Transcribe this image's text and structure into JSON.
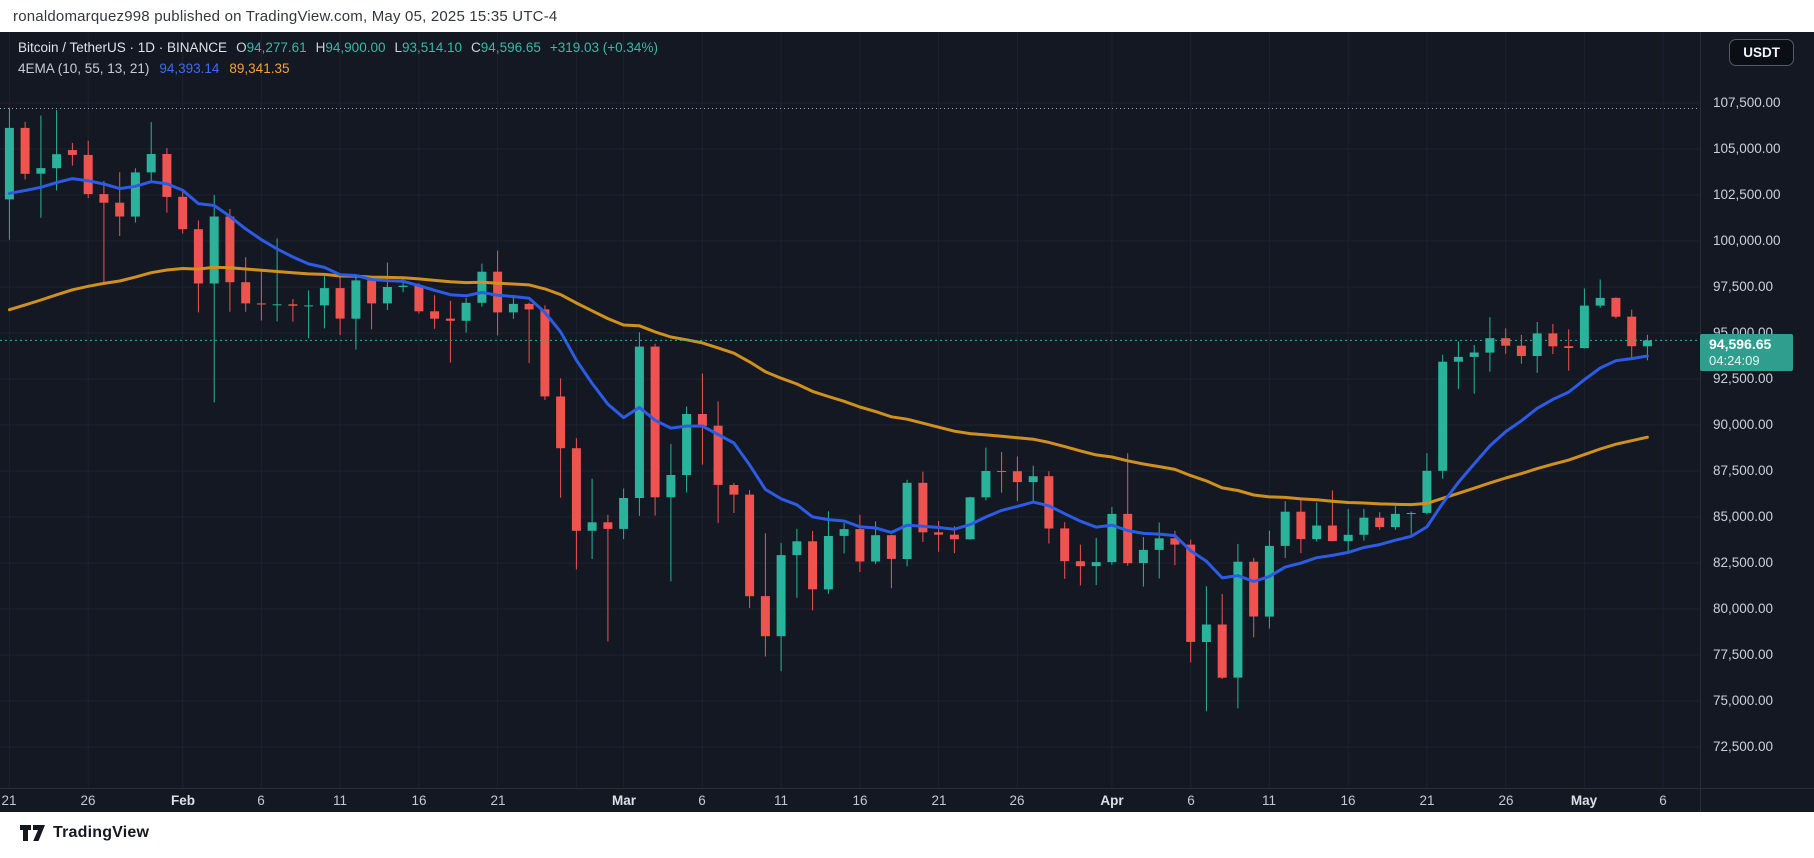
{
  "header": {
    "publish_text": "ronaldomarquez998 published on TradingView.com, May 05, 2025 15:35 UTC-4"
  },
  "legend": {
    "symbol_title": "Bitcoin / TetherUS · 1D · BINANCE",
    "ohlc": [
      {
        "label": "O",
        "value": "94,277.61"
      },
      {
        "label": "H",
        "value": "94,900.00"
      },
      {
        "label": "L",
        "value": "93,514.10"
      },
      {
        "label": "C",
        "value": "94,596.65"
      }
    ],
    "change_text": "+319.03 (+0.34%)",
    "indicator_label": "4EMA (10, 55, 13, 21)",
    "ema_fast_value": "94,393.14",
    "ema_slow_value": "89,341.35"
  },
  "toolbar": {
    "currency_label": "USDT"
  },
  "price_scale": {
    "last_price_label": "94,596.65",
    "countdown": "04:24:09"
  },
  "footer": {
    "logo_text": "TradingView"
  },
  "colors": {
    "background": "#141823",
    "grid": "#1d2230",
    "axis_border": "#2a2e39",
    "axis_text": "#cdd0d9",
    "candle_up": "#2ab29a",
    "candle_down": "#ef5350",
    "ema_fast": "#2c5ce5",
    "ema_slow": "#d0901e",
    "last_price_line": "#2eaf9d",
    "ath_line": "#b9bec9",
    "badge_bg": "#2f9e8f",
    "legend_value": "#3cb8a5"
  },
  "chart_data": {
    "type": "candlestick",
    "title": "Bitcoin / TetherUS",
    "interval": "1D",
    "exchange": "BINANCE",
    "grid": true,
    "price_axis": {
      "min": 72500,
      "max": 107500,
      "step": 2500,
      "visible_range": [
        70300,
        109100
      ]
    },
    "time_ticks": [
      {
        "label": "21",
        "day": 0
      },
      {
        "label": "26",
        "day": 5
      },
      {
        "label": "Feb",
        "day": 11,
        "bold": true
      },
      {
        "label": "6",
        "day": 16
      },
      {
        "label": "11",
        "day": 21
      },
      {
        "label": "16",
        "day": 26
      },
      {
        "label": "21",
        "day": 31
      },
      {
        "label": "",
        "day": 36
      },
      {
        "label": "Mar",
        "day": 39,
        "bold": true
      },
      {
        "label": "6",
        "day": 44
      },
      {
        "label": "11",
        "day": 49
      },
      {
        "label": "16",
        "day": 54
      },
      {
        "label": "21",
        "day": 59
      },
      {
        "label": "26",
        "day": 64
      },
      {
        "label": "Apr",
        "day": 70,
        "bold": true
      },
      {
        "label": "6",
        "day": 75
      },
      {
        "label": "11",
        "day": 80
      },
      {
        "label": "16",
        "day": 85
      },
      {
        "label": "21",
        "day": 90
      },
      {
        "label": "26",
        "day": 95
      },
      {
        "label": "May",
        "day": 100,
        "bold": true
      },
      {
        "label": "6",
        "day": 105
      }
    ],
    "first_candle_axis_label": "21",
    "candles_ohlc": [
      [
        102260,
        107240,
        100070,
        106146
      ],
      [
        106146,
        106480,
        103340,
        103653
      ],
      [
        103653,
        106820,
        101260,
        103960
      ],
      [
        103960,
        107120,
        102750,
        104720
      ],
      [
        104940,
        105330,
        104100,
        104680
      ],
      [
        104680,
        105450,
        102330,
        102550
      ],
      [
        102550,
        103260,
        97750,
        102080
      ],
      [
        102080,
        103740,
        100270,
        101330
      ],
      [
        101330,
        103950,
        101000,
        103730
      ],
      [
        103730,
        106460,
        103290,
        104730
      ],
      [
        104730,
        105050,
        101540,
        102400
      ],
      [
        102400,
        102790,
        100410,
        100640
      ],
      [
        100640,
        101120,
        96120,
        97690
      ],
      [
        97690,
        102500,
        91230,
        101330
      ],
      [
        101330,
        101740,
        96150,
        97760
      ],
      [
        97760,
        99120,
        96150,
        96610
      ],
      [
        96610,
        98400,
        95680,
        96550
      ],
      [
        96550,
        100140,
        95630,
        96560
      ],
      [
        96560,
        96850,
        95620,
        96480
      ],
      [
        96480,
        97320,
        94710,
        96500
      ],
      [
        96500,
        98100,
        95250,
        97440
      ],
      [
        97440,
        98230,
        94880,
        95780
      ],
      [
        95780,
        98120,
        94090,
        97860
      ],
      [
        97860,
        98080,
        95200,
        96610
      ],
      [
        96610,
        98830,
        96250,
        97500
      ],
      [
        97500,
        97970,
        97220,
        97570
      ],
      [
        97570,
        97700,
        96060,
        96180
      ],
      [
        96180,
        97050,
        95230,
        95780
      ],
      [
        95780,
        96750,
        93390,
        95660
      ],
      [
        95660,
        96900,
        95020,
        96640
      ],
      [
        96640,
        98770,
        96430,
        98330
      ],
      [
        98330,
        99480,
        94870,
        96120
      ],
      [
        96120,
        96940,
        95770,
        96580
      ],
      [
        96580,
        96650,
        93370,
        96280
      ],
      [
        96280,
        96500,
        91360,
        91550
      ],
      [
        91550,
        92540,
        86050,
        88740
      ],
      [
        88740,
        89290,
        82150,
        84250
      ],
      [
        84250,
        87080,
        82720,
        84710
      ],
      [
        84710,
        85120,
        78240,
        84350
      ],
      [
        84350,
        86550,
        83800,
        86030
      ],
      [
        86030,
        95040,
        85060,
        94260
      ],
      [
        94260,
        94420,
        85080,
        86070
      ],
      [
        86070,
        88970,
        81500,
        87280
      ],
      [
        87280,
        91000,
        86330,
        90600
      ],
      [
        90600,
        92800,
        87850,
        89960
      ],
      [
        89960,
        91280,
        84670,
        86740
      ],
      [
        86740,
        86850,
        85220,
        86220
      ],
      [
        86220,
        86470,
        80050,
        80700
      ],
      [
        80700,
        84120,
        77420,
        78520
      ],
      [
        78520,
        83580,
        76620,
        82930
      ],
      [
        82930,
        84360,
        80610,
        83680
      ],
      [
        83680,
        84240,
        79930,
        81070
      ],
      [
        81070,
        85310,
        80820,
        83970
      ],
      [
        83970,
        84670,
        83020,
        84340
      ],
      [
        84340,
        85120,
        82010,
        82580
      ],
      [
        82580,
        84760,
        82440,
        84010
      ],
      [
        84010,
        84030,
        81130,
        82720
      ],
      [
        82720,
        87020,
        82320,
        86860
      ],
      [
        86860,
        87460,
        83640,
        84170
      ],
      [
        84170,
        84790,
        83110,
        84040
      ],
      [
        84040,
        84500,
        83030,
        83790
      ],
      [
        83790,
        86100,
        83760,
        86070
      ],
      [
        86070,
        88770,
        85910,
        87500
      ],
      [
        87500,
        88540,
        86320,
        87490
      ],
      [
        87490,
        88290,
        85860,
        86900
      ],
      [
        86900,
        87790,
        85830,
        87220
      ],
      [
        87220,
        87490,
        83560,
        84380
      ],
      [
        84380,
        84720,
        81640,
        82600
      ],
      [
        82600,
        83500,
        81280,
        82330
      ],
      [
        82330,
        83870,
        81300,
        82550
      ],
      [
        82550,
        85550,
        82410,
        85170
      ],
      [
        85170,
        88470,
        82350,
        82490
      ],
      [
        82490,
        83910,
        81220,
        83210
      ],
      [
        83210,
        84700,
        81660,
        83840
      ],
      [
        83840,
        84250,
        82380,
        83500
      ],
      [
        83500,
        83770,
        77100,
        78210
      ],
      [
        78210,
        81240,
        74440,
        79160
      ],
      [
        79160,
        80820,
        76200,
        76270
      ],
      [
        76270,
        83540,
        74600,
        82570
      ],
      [
        82570,
        82780,
        78460,
        79590
      ],
      [
        79590,
        84250,
        78940,
        83430
      ],
      [
        83430,
        85860,
        82770,
        85290
      ],
      [
        85290,
        86010,
        83030,
        83800
      ],
      [
        83800,
        85790,
        83670,
        84540
      ],
      [
        84540,
        86450,
        83680,
        83690
      ],
      [
        83690,
        85440,
        83100,
        84030
      ],
      [
        84030,
        85440,
        83720,
        84960
      ],
      [
        84960,
        85260,
        84300,
        84450
      ],
      [
        84450,
        85600,
        84300,
        85170
      ],
      [
        85170,
        85300,
        83970,
        85220
      ],
      [
        85220,
        88470,
        85140,
        87510
      ],
      [
        87510,
        93820,
        87080,
        93440
      ],
      [
        93440,
        94530,
        91960,
        93700
      ],
      [
        93700,
        94350,
        91700,
        93940
      ],
      [
        93940,
        95860,
        92900,
        94720
      ],
      [
        94720,
        95250,
        93870,
        94310
      ],
      [
        94310,
        94900,
        93330,
        93750
      ],
      [
        93750,
        95600,
        92830,
        94980
      ],
      [
        94980,
        95490,
        93860,
        94280
      ],
      [
        94280,
        95200,
        92950,
        94180
      ],
      [
        94180,
        97420,
        94150,
        96490
      ],
      [
        96490,
        97910,
        96370,
        96910
      ],
      [
        96910,
        96940,
        95790,
        95890
      ],
      [
        95890,
        96270,
        93570,
        94280
      ],
      [
        94277.61,
        94900.0,
        93514.1,
        94596.65
      ]
    ],
    "indicators": [
      {
        "name": "ema-fast",
        "period": 13,
        "seed": 102000,
        "last_value": 94393.14
      },
      {
        "name": "ema-slow",
        "period": 55,
        "seed": 95900,
        "last_value": 89341.35
      }
    ],
    "lines": [
      {
        "name": "all-time-high-line",
        "price": 107200,
        "style": "dotted"
      },
      {
        "name": "last-price-line",
        "price": 94596.65,
        "style": "dotted"
      }
    ],
    "last_candle_countdown": "04:24:09"
  }
}
